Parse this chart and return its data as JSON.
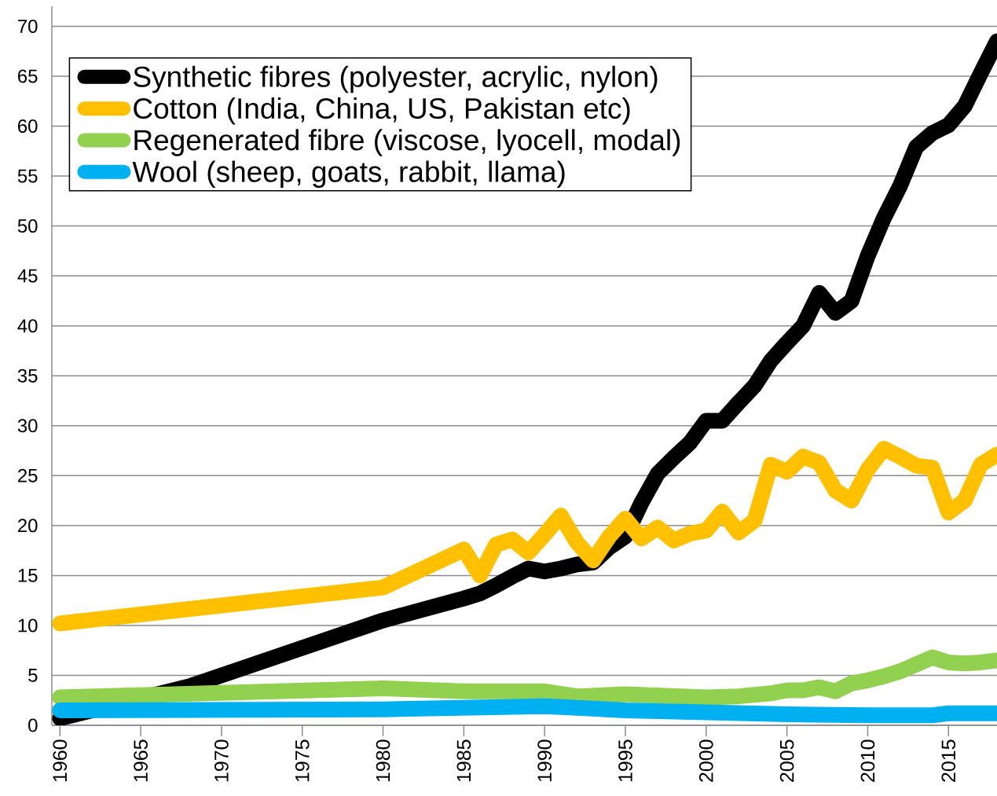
{
  "chart_data": {
    "type": "line",
    "series": [
      {
        "name": "Synthetic fibres (polyester, acrylic, nylon)",
        "color": "#000000",
        "x": [
          1960,
          1968,
          1980,
          1985,
          1986,
          1987,
          1988,
          1989,
          1990,
          1991,
          1992,
          1993,
          1994,
          1995,
          1996,
          1997,
          1998,
          1999,
          2000,
          2001,
          2002,
          2003,
          2004,
          2005,
          2006,
          2007,
          2008,
          2009,
          2010,
          2011,
          2012,
          2013,
          2014,
          2015,
          2016,
          2017,
          2018
        ],
        "values": [
          0.7,
          3.9,
          10.5,
          12.7,
          13.2,
          14.0,
          14.9,
          15.7,
          15.4,
          15.7,
          16.1,
          16.3,
          17.8,
          18.9,
          22.3,
          25.2,
          26.8,
          28.3,
          30.5,
          30.5,
          32.3,
          34.0,
          36.5,
          38.3,
          40.0,
          43.3,
          41.3,
          42.5,
          47.0,
          50.8,
          54.0,
          57.9,
          59.3,
          60.1,
          62.0,
          65.3,
          68.5
        ]
      },
      {
        "name": "Cotton (India, China, US, Pakistan etc)",
        "color": "#ffc000",
        "x": [
          1960,
          1980,
          1985,
          1986,
          1987,
          1988,
          1989,
          1990,
          1991,
          1992,
          1993,
          1994,
          1995,
          1996,
          1997,
          1998,
          1999,
          2000,
          2001,
          2002,
          2003,
          2004,
          2005,
          2006,
          2007,
          2008,
          2009,
          2010,
          2011,
          2012,
          2013,
          2014,
          2015,
          2016,
          2017,
          2018
        ],
        "values": [
          10.2,
          13.8,
          17.6,
          15.0,
          18.1,
          18.6,
          17.3,
          19.1,
          21.0,
          18.3,
          16.5,
          18.9,
          20.7,
          18.7,
          19.8,
          18.5,
          19.2,
          19.5,
          21.4,
          19.3,
          20.5,
          26.1,
          25.4,
          26.9,
          26.3,
          23.5,
          22.5,
          25.6,
          27.7,
          26.9,
          26.0,
          25.8,
          21.3,
          22.5,
          26.1,
          27.1
        ]
      },
      {
        "name": "Regenerated fibre (viscose, lyocell, modal)",
        "color": "#92d050",
        "x": [
          1960,
          1980,
          1985,
          1990,
          1992,
          1995,
          2000,
          2002,
          2004,
          2005,
          2006,
          2007,
          2008,
          2009,
          2010,
          2011,
          2012,
          2013,
          2014,
          2015,
          2016,
          2017,
          2018
        ],
        "values": [
          2.8,
          3.7,
          3.4,
          3.4,
          2.9,
          3.1,
          2.8,
          2.9,
          3.2,
          3.5,
          3.5,
          3.8,
          3.4,
          4.2,
          4.5,
          4.9,
          5.4,
          6.1,
          6.8,
          6.3,
          6.2,
          6.3,
          6.5
        ]
      },
      {
        "name": "Wool (sheep, goats, rabbit, llama)",
        "color": "#00b0f0",
        "x": [
          1960,
          1980,
          1990,
          1995,
          2000,
          2005,
          2010,
          2014,
          2015,
          2018
        ],
        "values": [
          1.5,
          1.6,
          1.9,
          1.5,
          1.3,
          1.1,
          1.0,
          1.0,
          1.2,
          1.2
        ]
      }
    ],
    "xlim": [
      1959.5,
      2018
    ],
    "xticks": [
      1960,
      1965,
      1970,
      1975,
      1980,
      1985,
      1990,
      1995,
      2000,
      2005,
      2010,
      2015
    ],
    "ylim": [
      0,
      72
    ],
    "yticks": [
      0,
      5,
      10,
      15,
      20,
      25,
      30,
      35,
      40,
      45,
      50,
      55,
      60,
      65,
      70
    ],
    "grid": "y",
    "legend": "top left",
    "marker": "none",
    "line_style": "solid"
  }
}
